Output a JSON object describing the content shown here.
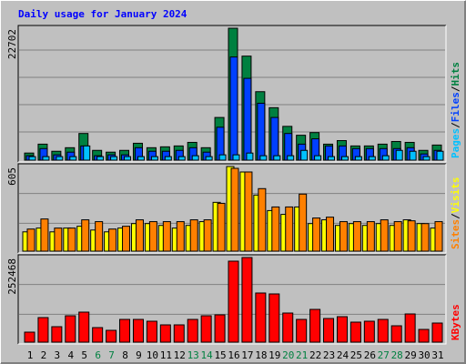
{
  "chart_data": [
    {
      "type": "bar",
      "title": "Daily usage for January 2024",
      "ylim": [
        0,
        22702
      ],
      "yticks": [
        22702
      ],
      "grid": true,
      "legend_separator": "/",
      "series": [
        {
          "name": "Hits",
          "color": "#008040",
          "values": [
            1224,
            2754,
            1530,
            2142,
            4590,
            1683,
            1377,
            1683,
            2907,
            2142,
            2295,
            2448,
            3060,
            2142,
            7344,
            22702,
            17901,
            11781,
            9027,
            5814,
            4284,
            4743,
            2754,
            3366,
            2448,
            2448,
            2754,
            3213,
            3060,
            1683,
            2601
          ]
        },
        {
          "name": "Files",
          "color": "#0040ff",
          "values": [
            765,
            1989,
            918,
            1377,
            2448,
            765,
            918,
            918,
            2142,
            1530,
            1530,
            1683,
            2142,
            1377,
            5661,
            17748,
            14076,
            9792,
            7344,
            4590,
            2754,
            3672,
            2448,
            2448,
            1989,
            1989,
            1989,
            1989,
            2142,
            1071,
            1683
          ]
        },
        {
          "name": "Pages",
          "color": "#00c0ff",
          "values": [
            612,
            612,
            612,
            612,
            2448,
            612,
            612,
            612,
            612,
            612,
            612,
            612,
            765,
            612,
            918,
            918,
            1224,
            765,
            765,
            765,
            1683,
            765,
            612,
            612,
            612,
            612,
            765,
            1683,
            1530,
            612,
            1530
          ]
        }
      ]
    },
    {
      "type": "bar",
      "ylim": [
        0,
        605
      ],
      "yticks": [
        605
      ],
      "grid": true,
      "legend_separator": "/",
      "series": [
        {
          "name": "Visits",
          "color": "#ffff00",
          "values": [
            138,
            165,
            138,
            165,
            178,
            151,
            138,
            165,
            197,
            197,
            184,
            165,
            184,
            211,
            349,
            605,
            566,
            401,
            290,
            263,
            316,
            197,
            224,
            184,
            197,
            184,
            197,
            184,
            224,
            197,
            165
          ]
        },
        {
          "name": "Sites",
          "color": "#ff8000",
          "values": [
            158,
            230,
            165,
            165,
            224,
            211,
            158,
            178,
            224,
            211,
            211,
            211,
            224,
            224,
            342,
            592,
            566,
            447,
            316,
            316,
            408,
            237,
            243,
            211,
            211,
            211,
            224,
            211,
            217,
            197,
            211
          ]
        }
      ]
    },
    {
      "type": "bar",
      "ylim": [
        0,
        252468
      ],
      "yticks": [
        252468
      ],
      "grid": true,
      "categories": [
        "1",
        "2",
        "3",
        "4",
        "5",
        "6",
        "7",
        "8",
        "9",
        "10",
        "11",
        "12",
        "13",
        "14",
        "15",
        "16",
        "17",
        "18",
        "19",
        "20",
        "21",
        "22",
        "23",
        "24",
        "25",
        "26",
        "27",
        "28",
        "29",
        "30",
        "31"
      ],
      "category_colors": [
        "#000000",
        "#000000",
        "#000000",
        "#000000",
        "#000000",
        "#008040",
        "#008040",
        "#000000",
        "#000000",
        "#000000",
        "#000000",
        "#000000",
        "#008040",
        "#008040",
        "#000000",
        "#000000",
        "#000000",
        "#000000",
        "#000000",
        "#008040",
        "#008040",
        "#000000",
        "#000000",
        "#000000",
        "#000000",
        "#000000",
        "#008040",
        "#008040",
        "#000000",
        "#000000",
        "#000000"
      ],
      "series": [
        {
          "name": "KBytes",
          "color": "#ff0000",
          "values": [
            29865,
            73305,
            46155,
            78735,
            89595,
            43440,
            35295,
            67875,
            67875,
            62445,
            51585,
            51585,
            67875,
            78735,
            81450,
            241635,
            252468,
            146610,
            143895,
            86880,
            67875,
            97740,
            70590,
            76020,
            59730,
            62445,
            67875,
            48870,
            84165,
            38010,
            57015
          ]
        }
      ]
    }
  ]
}
